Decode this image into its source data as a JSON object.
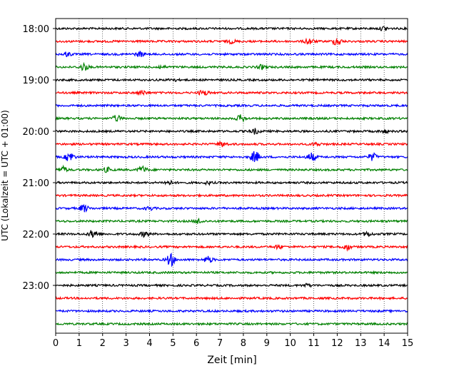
{
  "chart_data": {
    "type": "line",
    "chart_kind": "helicorder",
    "title": "",
    "xlabel": "Zeit  [min]",
    "ylabel": "UTC (Lokalzeit = UTC + 01:00)",
    "xlim": [
      0,
      15
    ],
    "x_ticks": [
      "0",
      "1",
      "2",
      "3",
      "4",
      "5",
      "6",
      "7",
      "8",
      "9",
      "10",
      "11",
      "12",
      "13",
      "14",
      "15"
    ],
    "y_ticks": [
      {
        "label": "18:00",
        "row": 0
      },
      {
        "label": "19:00",
        "row": 4
      },
      {
        "label": "20:00",
        "row": 8
      },
      {
        "label": "21:00",
        "row": 12
      },
      {
        "label": "22:00",
        "row": 16
      },
      {
        "label": "23:00",
        "row": 20
      }
    ],
    "grid": "vertical dotted at each minute",
    "row_colors": [
      "#000000",
      "#ff0000",
      "#0000ff",
      "#008000"
    ],
    "rows": [
      {
        "start": "18:00",
        "events": [
          [
            14.0,
            0.5
          ]
        ]
      },
      {
        "start": "18:15",
        "events": [
          [
            10.8,
            0.8
          ],
          [
            12.0,
            1.0
          ],
          [
            7.5,
            0.4
          ]
        ]
      },
      {
        "start": "18:30",
        "events": [
          [
            0.5,
            0.5
          ],
          [
            3.6,
            0.6
          ]
        ]
      },
      {
        "start": "18:45",
        "events": [
          [
            1.2,
            0.9
          ],
          [
            8.8,
            0.5
          ],
          [
            4.5,
            0.3
          ]
        ]
      },
      {
        "start": "19:00",
        "events": [
          [
            5.0,
            0.3
          ]
        ]
      },
      {
        "start": "19:15",
        "events": [
          [
            3.7,
            0.5
          ],
          [
            6.3,
            0.7
          ]
        ]
      },
      {
        "start": "19:30",
        "events": []
      },
      {
        "start": "19:45",
        "events": [
          [
            2.6,
            0.7
          ],
          [
            7.9,
            0.8
          ]
        ]
      },
      {
        "start": "20:00",
        "events": [
          [
            8.5,
            0.6
          ],
          [
            14.0,
            0.4
          ]
        ]
      },
      {
        "start": "20:15",
        "events": [
          [
            7.1,
            0.6
          ],
          [
            11.1,
            0.4
          ]
        ]
      },
      {
        "start": "20:30",
        "events": [
          [
            0.6,
            1.2
          ],
          [
            8.5,
            1.4
          ],
          [
            10.9,
            1.0
          ],
          [
            13.5,
            0.9
          ]
        ]
      },
      {
        "start": "20:45",
        "events": [
          [
            0.3,
            0.7
          ],
          [
            2.2,
            0.5
          ],
          [
            3.7,
            0.8
          ]
        ]
      },
      {
        "start": "21:00",
        "events": [
          [
            4.8,
            0.5
          ],
          [
            6.5,
            0.3
          ]
        ]
      },
      {
        "start": "21:15",
        "events": []
      },
      {
        "start": "21:30",
        "events": [
          [
            1.2,
            0.9
          ],
          [
            4.0,
            0.4
          ]
        ]
      },
      {
        "start": "21:45",
        "events": [
          [
            6.1,
            0.6
          ]
        ]
      },
      {
        "start": "22:00",
        "events": [
          [
            1.6,
            1.0
          ],
          [
            3.8,
            0.6
          ],
          [
            13.3,
            0.5
          ]
        ]
      },
      {
        "start": "22:15",
        "events": [
          [
            9.5,
            0.4
          ],
          [
            12.4,
            0.7
          ]
        ]
      },
      {
        "start": "22:30",
        "events": [
          [
            4.9,
            1.5
          ],
          [
            6.5,
            0.8
          ]
        ]
      },
      {
        "start": "22:45",
        "events": []
      },
      {
        "start": "23:00",
        "events": [
          [
            10.7,
            0.3
          ]
        ]
      },
      {
        "start": "23:15",
        "events": []
      },
      {
        "start": "23:30",
        "events": []
      },
      {
        "start": "23:45",
        "events": []
      }
    ]
  }
}
